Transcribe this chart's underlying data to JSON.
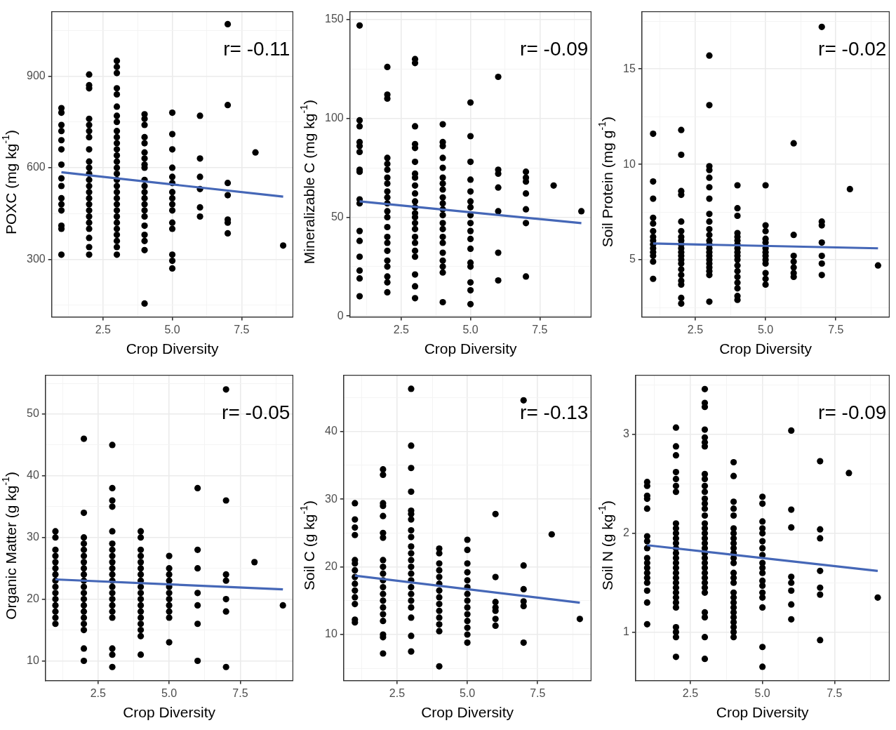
{
  "chart_data": [
    {
      "type": "scatter",
      "xlabel": "Crop Diversity",
      "ylabel": "POXC (mg kg$^{-1}$)",
      "annotations": [
        "r= -0.11"
      ],
      "xlim": [
        0.65,
        9.35
      ],
      "ylim": [
        111,
        1111
      ],
      "xticks": [
        {
          "value": 1.25,
          "label": null
        },
        {
          "value": 2.5,
          "label": "2.5"
        },
        {
          "value": 3.75,
          "label": null
        },
        {
          "value": 5,
          "label": "5.0"
        },
        {
          "value": 6.25,
          "label": null
        },
        {
          "value": 7.5,
          "label": "7.5"
        },
        {
          "value": 8.75,
          "label": null
        }
      ],
      "yticks": [
        {
          "value": 150,
          "label": null
        },
        300,
        {
          "value": 450,
          "label": null
        },
        600,
        {
          "value": 750,
          "label": null
        },
        900,
        {
          "value": 1050,
          "label": null
        }
      ],
      "grid": true,
      "series": [
        {
          "type": "scatter",
          "color": "#000000",
          "marker": "circle",
          "x": [
            1,
            1,
            1,
            1,
            1,
            1,
            1,
            1,
            1,
            1,
            1,
            1,
            1,
            1,
            1,
            2,
            2,
            2,
            2,
            2,
            2,
            2,
            2,
            2,
            2,
            2,
            2,
            2,
            2,
            2,
            2,
            2,
            2,
            2,
            2,
            2,
            2,
            2,
            3,
            3,
            3,
            3,
            3,
            3,
            3,
            3,
            3,
            3,
            3,
            3,
            3,
            3,
            3,
            3,
            3,
            3,
            3,
            3,
            3,
            3,
            3,
            3,
            3,
            3,
            3,
            3,
            3,
            4,
            4,
            4,
            4,
            4,
            4,
            4,
            4,
            4,
            4,
            4,
            4,
            4,
            4,
            4,
            4,
            4,
            4,
            4,
            4,
            4,
            5,
            5,
            5,
            5,
            5,
            5,
            5,
            5,
            5,
            5,
            5,
            5,
            5,
            5,
            5,
            6,
            6,
            6,
            6,
            6,
            6,
            7,
            7,
            7,
            7,
            7,
            7,
            7,
            8,
            9
          ],
          "values": [
            795,
            780,
            740,
            720,
            690,
            660,
            610,
            565,
            540,
            500,
            480,
            460,
            410,
            400,
            315,
            905,
            870,
            860,
            760,
            740,
            720,
            700,
            660,
            620,
            600,
            580,
            560,
            540,
            520,
            500,
            480,
            460,
            440,
            420,
            400,
            370,
            340,
            315,
            950,
            930,
            910,
            860,
            840,
            800,
            770,
            750,
            720,
            700,
            680,
            660,
            640,
            620,
            600,
            580,
            560,
            540,
            520,
            500,
            480,
            460,
            440,
            420,
            400,
            380,
            360,
            340,
            315,
            775,
            760,
            740,
            700,
            680,
            650,
            630,
            610,
            600,
            560,
            540,
            520,
            500,
            480,
            460,
            440,
            410,
            380,
            360,
            330,
            155,
            780,
            710,
            660,
            600,
            570,
            550,
            520,
            500,
            480,
            460,
            420,
            400,
            315,
            295,
            270,
            770,
            630,
            570,
            530,
            470,
            440,
            1070,
            805,
            550,
            510,
            430,
            420,
            385,
            650,
            345
          ]
        },
        {
          "type": "line",
          "color": "#4567b7",
          "marker": "none",
          "x": [
            1,
            9
          ],
          "values": [
            585,
            505
          ]
        }
      ]
    },
    {
      "type": "scatter",
      "xlabel": "Crop Diversity",
      "ylabel": "Mineralizable C (mg kg$^{-1}$)",
      "annotations": [
        "r= -0.09"
      ],
      "xlim": [
        0.65,
        9.35
      ],
      "ylim": [
        -0.5,
        154
      ],
      "xticks": [
        {
          "value": 1.25,
          "label": null
        },
        {
          "value": 2.5,
          "label": "2.5"
        },
        {
          "value": 3.75,
          "label": null
        },
        {
          "value": 5,
          "label": "5.0"
        },
        {
          "value": 6.25,
          "label": null
        },
        {
          "value": 7.5,
          "label": "7.5"
        },
        {
          "value": 8.75,
          "label": null
        }
      ],
      "yticks": [
        0,
        {
          "value": 25,
          "label": null
        },
        50,
        {
          "value": 75,
          "label": null
        },
        100,
        {
          "value": 125,
          "label": null
        },
        150
      ],
      "grid": true,
      "series": [
        {
          "type": "scatter",
          "color": "#000000",
          "marker": "circle",
          "x": [
            1,
            1,
            1,
            1,
            1,
            1,
            1,
            1,
            1,
            1,
            1,
            1,
            1,
            1,
            1,
            1,
            2,
            2,
            2,
            2,
            2,
            2,
            2,
            2,
            2,
            2,
            2,
            2,
            2,
            2,
            2,
            2,
            2,
            2,
            2,
            2,
            2,
            2,
            3,
            3,
            3,
            3,
            3,
            3,
            3,
            3,
            3,
            3,
            3,
            3,
            3,
            3,
            3,
            3,
            3,
            3,
            3,
            3,
            3,
            3,
            3,
            4,
            4,
            4,
            4,
            4,
            4,
            4,
            4,
            4,
            4,
            4,
            4,
            4,
            4,
            4,
            4,
            4,
            4,
            4,
            4,
            4,
            5,
            5,
            5,
            5,
            5,
            5,
            5,
            5,
            5,
            5,
            5,
            5,
            5,
            5,
            5,
            5,
            5,
            6,
            6,
            6,
            6,
            6,
            6,
            6,
            7,
            7,
            7,
            7,
            7,
            7,
            7,
            8,
            9
          ],
          "values": [
            147,
            99,
            96,
            88,
            86,
            83,
            74,
            73,
            59,
            57,
            43,
            38,
            30,
            23,
            19,
            10,
            126,
            112,
            110,
            80,
            77,
            74,
            70,
            67,
            63,
            60,
            57,
            53,
            50,
            45,
            40,
            37,
            33,
            28,
            25,
            20,
            17,
            12,
            130,
            128,
            96,
            87,
            85,
            78,
            72,
            70,
            66,
            62,
            58,
            55,
            52,
            50,
            47,
            44,
            40,
            37,
            33,
            30,
            21,
            15,
            9,
            97,
            88,
            86,
            80,
            75,
            70,
            67,
            64,
            60,
            57,
            54,
            51,
            47,
            44,
            40,
            37,
            32,
            28,
            25,
            22,
            7,
            108,
            91,
            78,
            69,
            63,
            58,
            55,
            51,
            47,
            43,
            39,
            34,
            27,
            25,
            17,
            13,
            6,
            121,
            74,
            72,
            65,
            53,
            32,
            18,
            73,
            70,
            68,
            62,
            54,
            47,
            20,
            66,
            53
          ]
        },
        {
          "type": "line",
          "color": "#4567b7",
          "marker": "none",
          "x": [
            1,
            9
          ],
          "values": [
            58,
            47
          ]
        }
      ]
    },
    {
      "type": "scatter",
      "xlabel": "Crop Diversity",
      "ylabel": "Soil Protein (mg g$^{-1}$)",
      "annotations": [
        "r= -0.02"
      ],
      "xlim": [
        0.6,
        9.4
      ],
      "ylim": [
        2,
        18
      ],
      "xticks": [
        {
          "value": 1.25,
          "label": null
        },
        {
          "value": 2.5,
          "label": "2.5"
        },
        {
          "value": 3.75,
          "label": null
        },
        {
          "value": 5,
          "label": "5.0"
        },
        {
          "value": 6.25,
          "label": null
        },
        {
          "value": 7.5,
          "label": "7.5"
        },
        {
          "value": 8.75,
          "label": null
        }
      ],
      "yticks": [
        {
          "value": 2.5,
          "label": null
        },
        5,
        {
          "value": 7.5,
          "label": null
        },
        10,
        {
          "value": 12.5,
          "label": null
        },
        15,
        {
          "value": 17.5,
          "label": null
        }
      ],
      "grid": true,
      "series": [
        {
          "color": "#000000",
          "marker": "circle",
          "x": [
            1,
            1,
            1,
            1,
            1,
            1,
            1,
            1,
            1,
            1,
            1,
            1,
            1,
            1,
            2,
            2,
            2,
            2,
            2,
            2,
            2,
            2,
            2,
            2,
            2,
            2,
            2,
            2,
            2,
            2,
            2,
            2,
            2,
            2,
            3,
            3,
            3,
            3,
            3,
            3,
            3,
            3,
            3,
            3,
            3,
            3,
            3,
            3,
            3,
            3,
            3,
            3,
            3,
            3,
            3,
            3,
            4,
            4,
            4,
            4,
            4,
            4,
            4,
            4,
            4,
            4,
            4,
            4,
            4,
            4,
            4,
            4,
            4,
            4,
            5,
            5,
            5,
            5,
            5,
            5,
            5,
            5,
            5,
            5,
            5,
            5,
            5,
            6,
            6,
            6,
            6,
            6,
            6,
            6,
            7,
            7,
            7,
            7,
            7,
            7,
            7,
            8,
            9
          ],
          "type": "scatter",
          "values": [
            11.6,
            9.1,
            8.2,
            7.2,
            6.9,
            6.5,
            6.2,
            6,
            5.8,
            5.6,
            5.4,
            5.2,
            4.9,
            4,
            11.8,
            10.5,
            8.6,
            8.4,
            7,
            6.5,
            6.2,
            6,
            5.8,
            5.6,
            5.4,
            5.2,
            5,
            4.8,
            4.5,
            4.2,
            3.9,
            3.7,
            3,
            2.7,
            15.7,
            13.1,
            9.9,
            9.7,
            9.3,
            8.8,
            8.2,
            7.4,
            7,
            6.6,
            6.3,
            6,
            5.8,
            5.6,
            5.4,
            5.2,
            5,
            4.8,
            4.6,
            4.4,
            4.2,
            2.8,
            8.9,
            7.7,
            7.3,
            6.4,
            6.2,
            6,
            5.8,
            5.6,
            5.4,
            5.2,
            5,
            4.7,
            4.4,
            4.1,
            3.8,
            3.5,
            3.1,
            2.9,
            8.9,
            6.8,
            6.5,
            6.1,
            5.9,
            5.6,
            5.4,
            5.2,
            5,
            4.8,
            4.3,
            4,
            3.7,
            11.1,
            6.3,
            5.2,
            4.9,
            4.6,
            4.3,
            4.1,
            17.2,
            7,
            6.8,
            5.9,
            5.2,
            4.8,
            4.2,
            8.7,
            4.7
          ]
        },
        {
          "type": "line",
          "color": "#4567b7",
          "marker": "none",
          "x": [
            1,
            9
          ],
          "values": [
            5.85,
            5.6
          ]
        }
      ]
    },
    {
      "type": "scatter",
      "xlabel": "Crop Diversity",
      "ylabel": "Organic Matter (g kg$^{-1}$)",
      "annotations": [
        "r= -0.05"
      ],
      "xlim": [
        0.65,
        9.35
      ],
      "ylim": [
        6.8,
        56.3
      ],
      "xticks": [
        {
          "value": 1.25,
          "label": null
        },
        {
          "value": 2.5,
          "label": "2.5"
        },
        {
          "value": 3.75,
          "label": null
        },
        {
          "value": 5,
          "label": "5.0"
        },
        {
          "value": 6.25,
          "label": null
        },
        {
          "value": 7.5,
          "label": "7.5"
        },
        {
          "value": 8.75,
          "label": null
        }
      ],
      "yticks": [
        10,
        {
          "value": 15,
          "label": null
        },
        20,
        {
          "value": 25,
          "label": null
        },
        30,
        {
          "value": 35,
          "label": null
        },
        40,
        {
          "value": 45,
          "label": null
        },
        50,
        {
          "value": 55,
          "label": null
        }
      ],
      "grid": true,
      "series": [
        {
          "color": "#000000",
          "marker": "circle",
          "x": [
            1,
            1,
            1,
            1,
            1,
            1,
            1,
            1,
            1,
            1,
            1,
            1,
            1,
            1,
            1,
            2,
            2,
            2,
            2,
            2,
            2,
            2,
            2,
            2,
            2,
            2,
            2,
            2,
            2,
            2,
            2,
            2,
            2,
            2,
            2,
            3,
            3,
            3,
            3,
            3,
            3,
            3,
            3,
            3,
            3,
            3,
            3,
            3,
            3,
            3,
            3,
            3,
            3,
            3,
            3,
            3,
            4,
            4,
            4,
            4,
            4,
            4,
            4,
            4,
            4,
            4,
            4,
            4,
            4,
            4,
            4,
            4,
            4,
            4,
            5,
            5,
            5,
            5,
            5,
            5,
            5,
            5,
            5,
            5,
            5,
            6,
            6,
            6,
            6,
            6,
            6,
            6,
            7,
            7,
            7,
            7,
            7,
            7,
            7,
            8,
            9
          ],
          "type": "scatter",
          "values": [
            31,
            30,
            28,
            27,
            26,
            25,
            24,
            23,
            22,
            21,
            20,
            19,
            18,
            17,
            16,
            46,
            34,
            30,
            29,
            28,
            27,
            26,
            25,
            24,
            23,
            22,
            21,
            20,
            19,
            18,
            17,
            16,
            15,
            12,
            10,
            45,
            38,
            36,
            35,
            31,
            29,
            28,
            27,
            26,
            25,
            24,
            23,
            22,
            21,
            20,
            19,
            18,
            17,
            12,
            11,
            9,
            31,
            30,
            28,
            27,
            26,
            25,
            24,
            23,
            22,
            21,
            20,
            19,
            18,
            17,
            16,
            15,
            14,
            11,
            27,
            25,
            24,
            23,
            22,
            21,
            20,
            19,
            18,
            17,
            13,
            38,
            28,
            25,
            21,
            19,
            16,
            10,
            54,
            36,
            24,
            23,
            20,
            18,
            9,
            26,
            19
          ]
        },
        {
          "type": "line",
          "color": "#4567b7",
          "marker": "none",
          "x": [
            1,
            9
          ],
          "values": [
            23.2,
            21.6
          ]
        }
      ]
    },
    {
      "type": "scatter",
      "xlabel": "Crop Diversity",
      "ylabel": "Soil C (g kg$^{-1}$)",
      "annotations": [
        "r= -0.13"
      ],
      "xlim": [
        0.6,
        9.4
      ],
      "ylim": [
        3.2,
        48.3
      ],
      "xticks": [
        {
          "value": 1.25,
          "label": null
        },
        {
          "value": 2.5,
          "label": "2.5"
        },
        {
          "value": 3.75,
          "label": null
        },
        {
          "value": 5,
          "label": "5.0"
        },
        {
          "value": 6.25,
          "label": null
        },
        {
          "value": 7.5,
          "label": "7.5"
        },
        {
          "value": 8.75,
          "label": null
        }
      ],
      "yticks": [
        {
          "value": 5,
          "label": null
        },
        10,
        {
          "value": 15,
          "label": null
        },
        20,
        {
          "value": 25,
          "label": null
        },
        30,
        {
          "value": 35,
          "label": null
        },
        40,
        {
          "value": 45,
          "label": null
        }
      ],
      "grid": true,
      "series": [
        {
          "color": "#000000",
          "marker": "circle",
          "x": [
            1,
            1,
            1,
            1,
            1,
            1,
            1,
            1,
            1,
            1,
            1,
            1,
            1,
            1,
            2,
            2,
            2,
            2,
            2,
            2,
            2,
            2,
            2,
            2,
            2,
            2,
            2,
            2,
            2,
            2,
            2,
            2,
            2,
            2,
            3,
            3,
            3,
            3,
            3,
            3,
            3,
            3,
            3,
            3,
            3,
            3,
            3,
            3,
            3,
            3,
            3,
            3,
            3,
            3,
            3,
            3,
            4,
            4,
            4,
            4,
            4,
            4,
            4,
            4,
            4,
            4,
            4,
            4,
            4,
            4,
            5,
            5,
            5,
            5,
            5,
            5,
            5,
            5,
            5,
            5,
            5,
            5,
            5,
            5,
            6,
            6,
            6,
            6,
            6,
            6,
            6,
            7,
            7,
            7,
            7,
            7,
            7,
            8,
            9
          ],
          "type": "scatter",
          "values": [
            29.4,
            27,
            25.8,
            24.7,
            21,
            20.5,
            19.5,
            18.5,
            17.5,
            16.5,
            15.5,
            14.5,
            12.2,
            11.8,
            34.4,
            33.6,
            29.4,
            29,
            27.5,
            25,
            24.3,
            21,
            20,
            19,
            18,
            17,
            16,
            15,
            14,
            13,
            12,
            10,
            9.6,
            7.2,
            46.3,
            37.9,
            34.6,
            31.1,
            28.3,
            27.8,
            27,
            25.4,
            24.4,
            23,
            22,
            21,
            20,
            19,
            18,
            17,
            16,
            15,
            14,
            12.5,
            9.8,
            7.5,
            22.7,
            22,
            20.5,
            19.5,
            18.5,
            17.5,
            16.5,
            15.5,
            14.5,
            13.5,
            12.5,
            11.5,
            10.5,
            5.3,
            24,
            22.5,
            20.5,
            19.2,
            18,
            17,
            16,
            15,
            14,
            13,
            12,
            11,
            10,
            8.8,
            27.8,
            18.5,
            14.8,
            14,
            13.5,
            12.3,
            11.3,
            44.6,
            20.2,
            16.7,
            14.9,
            14.2,
            8.8,
            24.8,
            12.3
          ]
        },
        {
          "type": "line",
          "color": "#4567b7",
          "marker": "none",
          "x": [
            1,
            9
          ],
          "values": [
            18.7,
            14.7
          ]
        }
      ]
    },
    {
      "type": "scatter",
      "xlabel": "Crop Diversity",
      "ylabel": "Soil N (g kg$^{-1}$)",
      "annotations": [
        "r= -0.09"
      ],
      "xlim": [
        0.6,
        9.4
      ],
      "ylim": [
        0.51,
        3.6
      ],
      "xticks": [
        {
          "value": 1.25,
          "label": null
        },
        {
          "value": 2.5,
          "label": "2.5"
        },
        {
          "value": 3.75,
          "label": null
        },
        {
          "value": 5,
          "label": "5.0"
        },
        {
          "value": 6.25,
          "label": null
        },
        {
          "value": 7.5,
          "label": "7.5"
        },
        {
          "value": 8.75,
          "label": null
        }
      ],
      "yticks": [
        1,
        {
          "value": 1.5,
          "label": null
        },
        2,
        {
          "value": 2.5,
          "label": null
        },
        3,
        {
          "value": 3.5,
          "label": null
        }
      ],
      "grid": true,
      "series": [
        {
          "color": "#000000",
          "marker": "circle",
          "x": [
            1,
            1,
            1,
            1,
            1,
            1,
            1,
            1,
            1,
            1,
            1,
            1,
            1,
            1,
            1,
            1,
            1,
            2,
            2,
            2,
            2,
            2,
            2,
            2,
            2,
            2,
            2,
            2,
            2,
            2,
            2,
            2,
            2,
            2,
            2,
            2,
            2,
            2,
            2,
            2,
            2,
            2,
            2,
            2,
            2,
            2,
            3,
            3,
            3,
            3,
            3,
            3,
            3,
            3,
            3,
            3,
            3,
            3,
            3,
            3,
            3,
            3,
            3,
            3,
            3,
            3,
            3,
            3,
            3,
            3,
            3,
            3,
            3,
            3,
            3,
            3,
            3,
            3,
            3,
            3,
            4,
            4,
            4,
            4,
            4,
            4,
            4,
            4,
            4,
            4,
            4,
            4,
            4,
            4,
            4,
            4,
            4,
            4,
            4,
            4,
            4,
            4,
            4,
            4,
            4,
            4,
            5,
            5,
            5,
            5,
            5,
            5,
            5,
            5,
            5,
            5,
            5,
            5,
            5,
            5,
            5,
            5,
            5,
            5,
            6,
            6,
            6,
            6,
            6,
            6,
            6,
            6,
            7,
            7,
            7,
            7,
            7,
            7,
            7,
            8,
            9
          ],
          "type": "scatter",
          "values": [
            2.52,
            2.48,
            2.38,
            2.35,
            2.25,
            1.97,
            1.92,
            1.85,
            1.75,
            1.7,
            1.65,
            1.6,
            1.55,
            1.5,
            1.42,
            1.3,
            1.08,
            3.07,
            2.88,
            2.79,
            2.62,
            2.55,
            2.48,
            2.42,
            2.1,
            2.05,
            2,
            1.95,
            1.9,
            1.85,
            1.8,
            1.75,
            1.7,
            1.65,
            1.6,
            1.55,
            1.5,
            1.45,
            1.4,
            1.35,
            1.3,
            1.25,
            1.05,
            1,
            0.95,
            0.75,
            3.46,
            3.32,
            3.28,
            3.05,
            2.97,
            2.92,
            2.88,
            2.6,
            2.55,
            2.48,
            2.42,
            2.35,
            2.3,
            2.25,
            2.18,
            2.1,
            2.05,
            2,
            1.95,
            1.9,
            1.85,
            1.8,
            1.75,
            1.7,
            1.65,
            1.6,
            1.55,
            1.5,
            1.45,
            1.4,
            1.2,
            1.15,
            0.95,
            0.73,
            2.72,
            2.58,
            2.32,
            2.25,
            2.18,
            2.05,
            2,
            1.95,
            1.9,
            1.85,
            1.8,
            1.75,
            1.7,
            1.6,
            1.55,
            1.5,
            1.4,
            1.35,
            1.3,
            1.25,
            1.2,
            1.15,
            1.1,
            1.05,
            1,
            0.95,
            2.37,
            2.3,
            2.12,
            2.05,
            2,
            1.92,
            1.85,
            1.78,
            1.7,
            1.65,
            1.6,
            1.52,
            1.47,
            1.4,
            1.35,
            1.25,
            0.85,
            0.65,
            3.04,
            2.24,
            2.06,
            1.56,
            1.5,
            1.42,
            1.28,
            1.13,
            2.73,
            2.04,
            1.95,
            1.62,
            1.45,
            1.38,
            0.92,
            2.61,
            1.35
          ]
        },
        {
          "type": "line",
          "color": "#4567b7",
          "marker": "none",
          "x": [
            1,
            9
          ],
          "values": [
            1.88,
            1.62
          ]
        }
      ]
    }
  ]
}
